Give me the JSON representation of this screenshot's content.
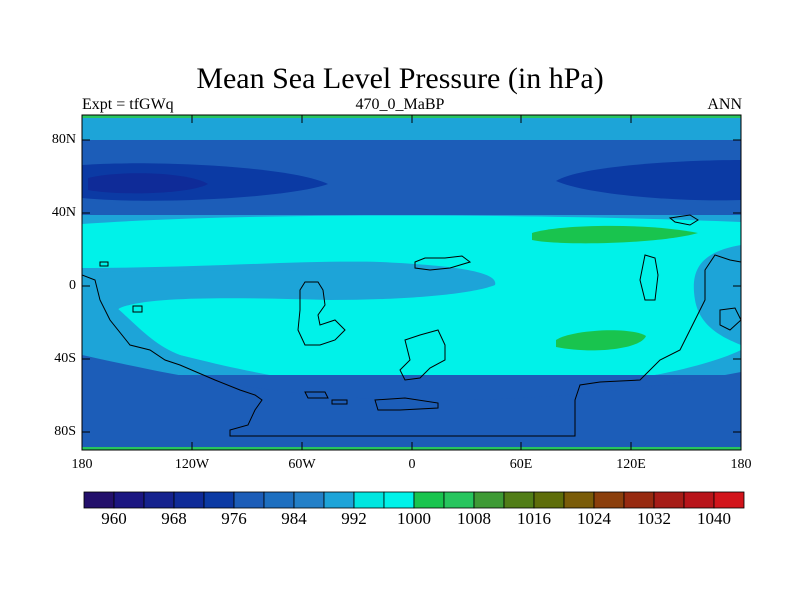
{
  "title": "Mean Sea Level Pressure (in hPa)",
  "subtitle_left": "Expt = tfGWq",
  "subtitle_center": "470_0_MaBP",
  "subtitle_right": "ANN",
  "lat_labels": [
    "80N",
    "40N",
    "0",
    "40S",
    "80S"
  ],
  "lon_labels": [
    "180",
    "120W",
    "60W",
    "0",
    "60E",
    "120E",
    "180"
  ],
  "colorbar": {
    "colors": [
      "#23106b",
      "#1b1681",
      "#15228e",
      "#0f2b98",
      "#0b3aa4",
      "#1c5db8",
      "#1d6fc0",
      "#2380c8",
      "#1da4d8",
      "#00e6e0",
      "#00f2e9",
      "#19c44e",
      "#27c55e",
      "#3e9a35",
      "#517d17",
      "#5e6d0a",
      "#7a5c09",
      "#8b3f0c",
      "#972a10",
      "#a61c17",
      "#b8141a",
      "#d2141b"
    ],
    "labels": [
      "960",
      "968",
      "976",
      "984",
      "992",
      "1000",
      "1008",
      "1016",
      "1024",
      "1032",
      "1040"
    ]
  },
  "colors": {
    "band_polar": "#1da4d8",
    "band_midlat": "#1c5db8",
    "low_core": "#0b3aa4",
    "low_deep": "#0f2b98",
    "high_ridge": "#1da4d8",
    "subtropical": "#00f2e9",
    "high_cell": "#19c44e",
    "southern_belt": "#1c5db8",
    "edge": "#27c55e",
    "coast": "#000000"
  }
}
